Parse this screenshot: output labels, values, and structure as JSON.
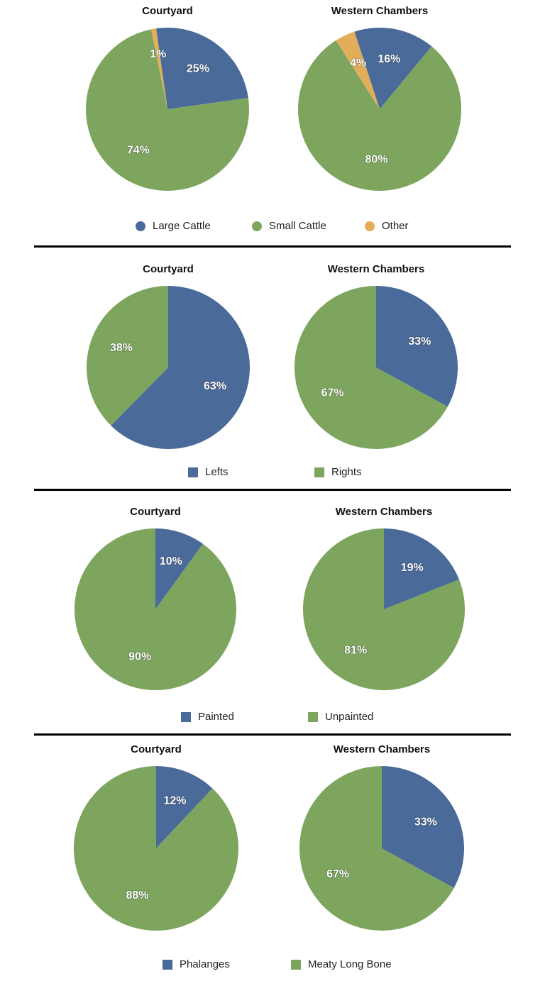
{
  "colors": {
    "blue": "#4a6a9a",
    "green": "#7da55e",
    "orange": "#e2ae5a"
  },
  "chart_data": [
    {
      "type": "pie",
      "title": "Courtyard",
      "slices": [
        {
          "label": "Large Cattle",
          "value": 25,
          "text": "25%",
          "color": "#4a6a9a"
        },
        {
          "label": "Small Cattle",
          "value": 74,
          "text": "74%",
          "color": "#7da55e"
        },
        {
          "label": "Other",
          "value": 1,
          "text": "1%",
          "color": "#e2ae5a"
        }
      ]
    },
    {
      "type": "pie",
      "title": "Western Chambers",
      "slices": [
        {
          "label": "Large Cattle",
          "value": 16,
          "text": "16%",
          "color": "#4a6a9a"
        },
        {
          "label": "Small Cattle",
          "value": 80,
          "text": "80%",
          "color": "#7da55e"
        },
        {
          "label": "Other",
          "value": 4,
          "text": "4%",
          "color": "#e2ae5a"
        }
      ]
    },
    {
      "type": "pie",
      "title": "Courtyard",
      "slices": [
        {
          "label": "Lefts",
          "value": 63,
          "text": "63%",
          "color": "#4a6a9a"
        },
        {
          "label": "Rights",
          "value": 38,
          "text": "38%",
          "color": "#7da55e"
        }
      ]
    },
    {
      "type": "pie",
      "title": "Western Chambers",
      "slices": [
        {
          "label": "Lefts",
          "value": 33,
          "text": "33%",
          "color": "#4a6a9a"
        },
        {
          "label": "Rights",
          "value": 67,
          "text": "67%",
          "color": "#7da55e"
        }
      ]
    },
    {
      "type": "pie",
      "title": "Courtyard",
      "slices": [
        {
          "label": "Painted",
          "value": 10,
          "text": "10%",
          "color": "#4a6a9a"
        },
        {
          "label": "Unpainted",
          "value": 90,
          "text": "90%",
          "color": "#7da55e"
        }
      ]
    },
    {
      "type": "pie",
      "title": "Western Chambers",
      "slices": [
        {
          "label": "Painted",
          "value": 19,
          "text": "19%",
          "color": "#4a6a9a"
        },
        {
          "label": "Unpainted",
          "value": 81,
          "text": "81%",
          "color": "#7da55e"
        }
      ]
    },
    {
      "type": "pie",
      "title": "Courtyard",
      "slices": [
        {
          "label": "Phalanges",
          "value": 12,
          "text": "12%",
          "color": "#4a6a9a"
        },
        {
          "label": "Meaty Long Bone",
          "value": 88,
          "text": "88%",
          "color": "#7da55e"
        }
      ]
    },
    {
      "type": "pie",
      "title": "Western Chambers",
      "slices": [
        {
          "label": "Phalanges",
          "value": 33,
          "text": "33%",
          "color": "#4a6a9a"
        },
        {
          "label": "Meaty Long Bone",
          "value": 67,
          "text": "67%",
          "color": "#7da55e"
        }
      ]
    }
  ],
  "legends": [
    {
      "marker": "circle",
      "items": [
        {
          "label": "Large Cattle",
          "color": "#4a6a9a"
        },
        {
          "label": "Small Cattle",
          "color": "#7da55e"
        },
        {
          "label": "Other",
          "color": "#e2ae5a"
        }
      ]
    },
    {
      "marker": "square",
      "items": [
        {
          "label": "Lefts",
          "color": "#4a6a9a"
        },
        {
          "label": "Rights",
          "color": "#7da55e"
        }
      ]
    },
    {
      "marker": "square",
      "items": [
        {
          "label": "Painted",
          "color": "#4a6a9a"
        },
        {
          "label": "Unpainted",
          "color": "#7da55e"
        }
      ]
    },
    {
      "marker": "square",
      "items": [
        {
          "label": "Phalanges",
          "color": "#4a6a9a"
        },
        {
          "label": "Meaty Long Bone",
          "color": "#7da55e"
        }
      ]
    }
  ]
}
